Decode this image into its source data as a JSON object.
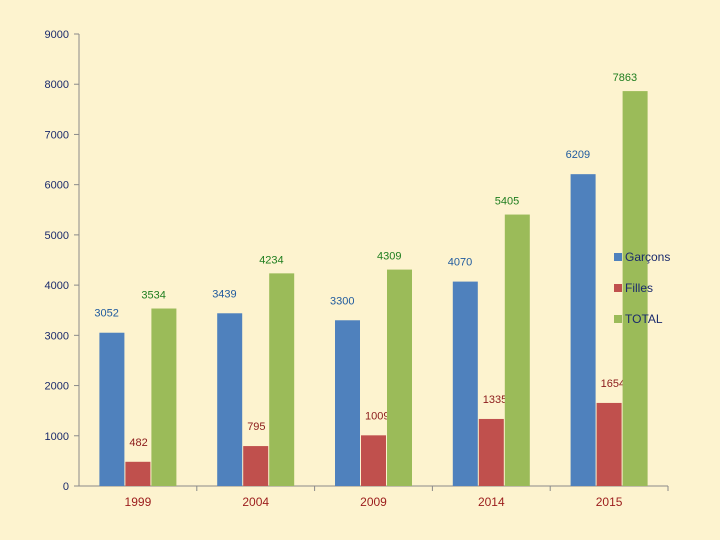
{
  "chart_data": {
    "type": "bar",
    "categories": [
      "1999",
      "2004",
      "2009",
      "2014",
      "2015"
    ],
    "series": [
      {
        "name": "Garçons",
        "values": [
          3052,
          3439,
          3300,
          4070,
          6209
        ],
        "color": "#4f81bd",
        "label_color": "#1f5a9e"
      },
      {
        "name": "Filles",
        "values": [
          482,
          795,
          1009,
          1335,
          1654
        ],
        "color": "#c0504d",
        "label_color": "#8b1a1a"
      },
      {
        "name": "TOTAL",
        "values": [
          3534,
          4234,
          4309,
          5405,
          7863
        ],
        "color": "#9bbb59",
        "label_color": "#1e7d1e"
      }
    ],
    "ylim": [
      0,
      9000
    ],
    "yticks": [
      0,
      1000,
      2000,
      3000,
      4000,
      5000,
      6000,
      7000,
      8000,
      9000
    ],
    "grid": false,
    "legend": "right"
  }
}
